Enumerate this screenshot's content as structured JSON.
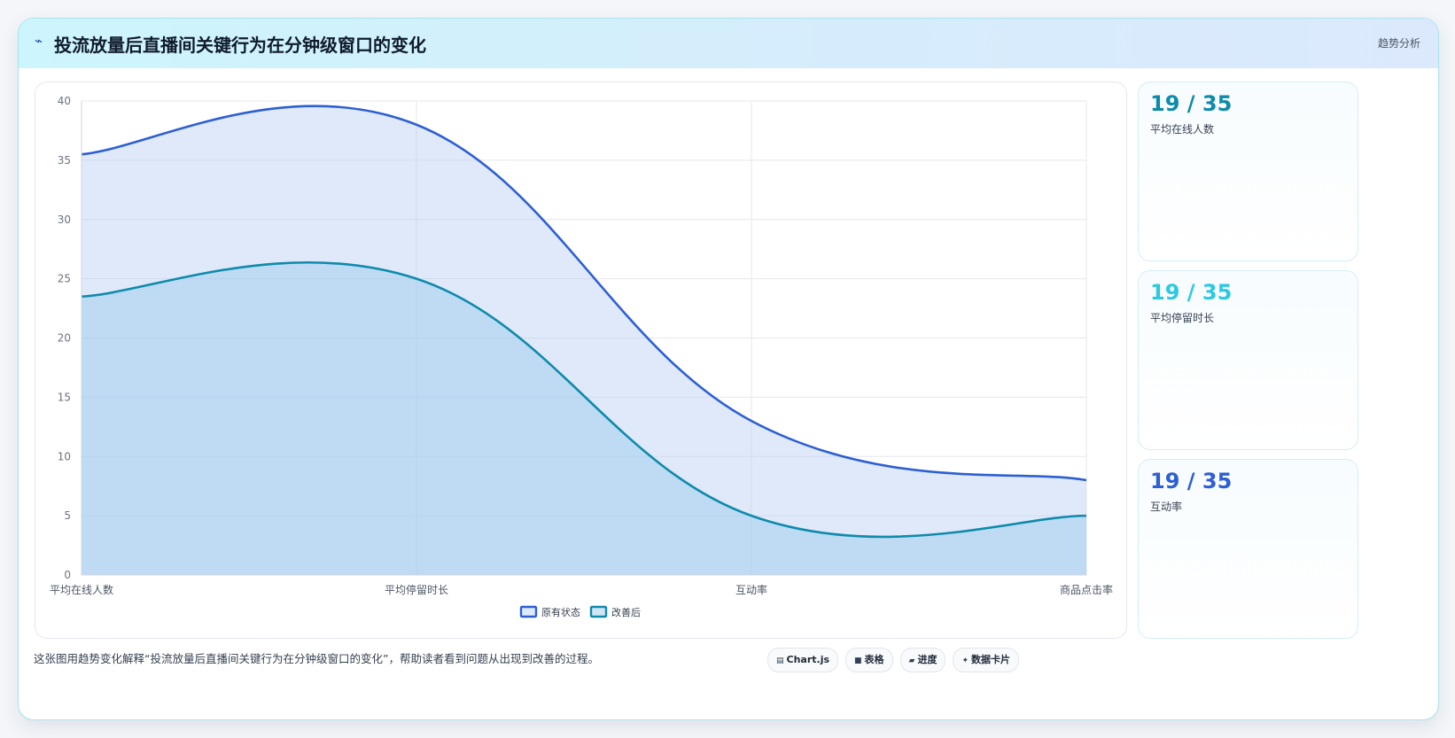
{
  "header": {
    "icon": "⌁",
    "title": "投流放量后直播间关键行为在分钟级窗口的变化",
    "tag": "趋势分析"
  },
  "chart_data": {
    "type": "area",
    "categories": [
      "平均在线人数",
      "平均停留时长",
      "互动率",
      "商品点击率"
    ],
    "series": [
      {
        "name": "原有状态",
        "values": [
          35.5,
          38,
          13,
          8
        ],
        "color": "#2d5fd3",
        "fill": "rgba(186, 206, 245, 0.45)"
      },
      {
        "name": "改善后",
        "values": [
          23.5,
          25,
          5,
          5
        ],
        "color": "#0e8bab",
        "fill": "rgba(150, 200, 235, 0.45)"
      }
    ],
    "ylim": [
      0,
      40
    ],
    "yticks": [
      0,
      5,
      10,
      15,
      20,
      25,
      30,
      35,
      40
    ],
    "grid": true,
    "legend_position": "bottom"
  },
  "stats": [
    {
      "value": "19 / 35",
      "label": "平均在线人数",
      "color": "#0e8bab"
    },
    {
      "value": "19 / 35",
      "label": "平均停留时长",
      "color": "#2dc9e3"
    },
    {
      "value": "19 / 35",
      "label": "互动率",
      "color": "#2d5fd3"
    }
  ],
  "caption": "这张图用趋势变化解释“投流放量后直播间关键行为在分钟级窗口的变化”，帮助读者看到问题从出现到改善的过程。",
  "pills": [
    {
      "icon": "▤",
      "label": "Chart.js",
      "icon_name": "chart-icon"
    },
    {
      "icon": "■",
      "label": "表格",
      "icon_name": "table-icon"
    },
    {
      "icon": "▰",
      "label": "进度",
      "icon_name": "progress-icon"
    },
    {
      "icon": "✦",
      "label": "数据卡片",
      "icon_name": "sparkle-icon"
    }
  ]
}
